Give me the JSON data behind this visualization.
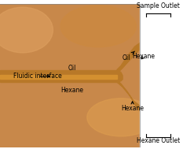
{
  "figsize": [
    2.33,
    1.89
  ],
  "dpi": 100,
  "bg_color": "#c8884a",
  "image_area": [
    0,
    0,
    1,
    1
  ],
  "channel_color": "#d4943a",
  "channel_dark": "#b8761e",
  "channel_highlight": "#e8b060",
  "outer_bg_color": "#d4a060",
  "labels": {
    "fluidic_interface": "Fluidic interface",
    "oil_center": "Oil",
    "hexane_center": "Hexane",
    "oil_right_top": "Oil",
    "hexane_right_top": "Hexane",
    "hexane_right_bottom": "Hexane",
    "sample_outlet": "Sample Outlet",
    "hexane_outlet": "Hexane Outlet"
  },
  "label_fontsize": 5.5,
  "arrow_color": "black",
  "bracket_color": "black",
  "text_color": "black"
}
